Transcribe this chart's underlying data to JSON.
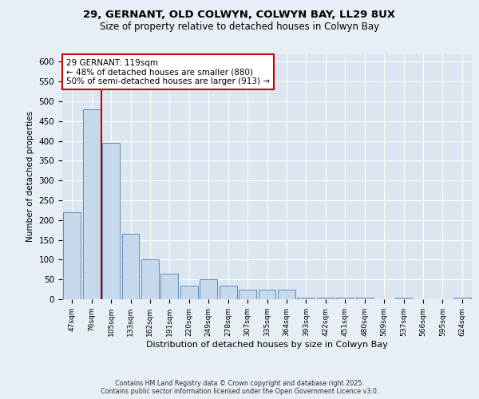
{
  "title_line1": "29, GERNANT, OLD COLWYN, COLWYN BAY, LL29 8UX",
  "title_line2": "Size of property relative to detached houses in Colwyn Bay",
  "xlabel": "Distribution of detached houses by size in Colwyn Bay",
  "ylabel": "Number of detached properties",
  "categories": [
    "47sqm",
    "76sqm",
    "105sqm",
    "133sqm",
    "162sqm",
    "191sqm",
    "220sqm",
    "249sqm",
    "278sqm",
    "307sqm",
    "335sqm",
    "364sqm",
    "393sqm",
    "422sqm",
    "451sqm",
    "480sqm",
    "509sqm",
    "537sqm",
    "566sqm",
    "595sqm",
    "624sqm"
  ],
  "values": [
    220,
    480,
    395,
    165,
    100,
    65,
    35,
    50,
    35,
    25,
    25,
    25,
    5,
    5,
    5,
    5,
    0,
    5,
    0,
    0,
    5
  ],
  "bar_color": "#c5d8ec",
  "bar_edge_color": "#5b8db8",
  "vline_color": "#cc0000",
  "vline_index": 2,
  "annotation_text": "29 GERNANT: 119sqm\n← 48% of detached houses are smaller (880)\n50% of semi-detached houses are larger (913) →",
  "annotation_box_color": "#ffffff",
  "annotation_box_edge": "#cc0000",
  "background_color": "#e8eef5",
  "plot_background": "#dce6f0",
  "grid_color": "#ffffff",
  "footer_text": "Contains HM Land Registry data © Crown copyright and database right 2025.\nContains public sector information licensed under the Open Government Licence v3.0.",
  "ylim": [
    0,
    620
  ],
  "yticks": [
    0,
    50,
    100,
    150,
    200,
    250,
    300,
    350,
    400,
    450,
    500,
    550,
    600
  ]
}
